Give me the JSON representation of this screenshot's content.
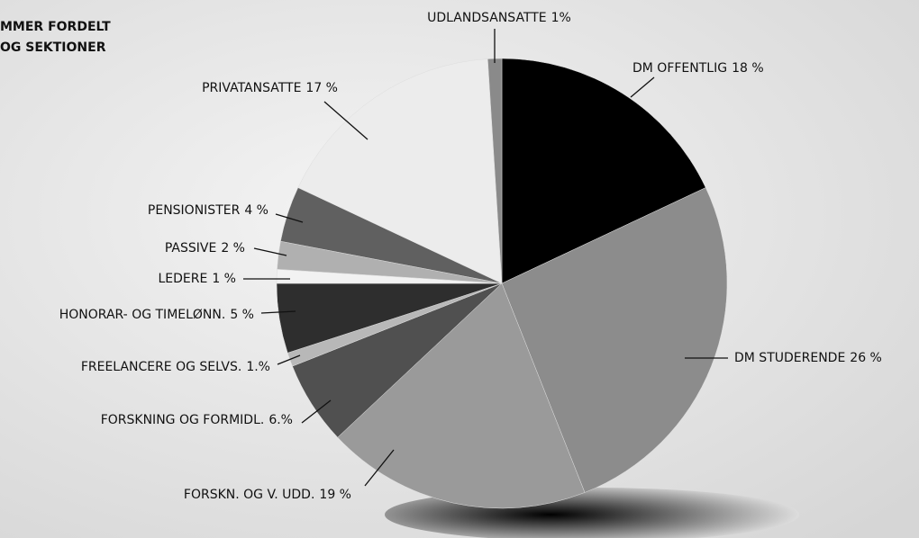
{
  "chart_data": {
    "type": "pie",
    "title": [
      "MMER FORDELT",
      "OG SEKTIONER"
    ],
    "categories": [
      "DM OFFENTLIG",
      "DM STUDERENDE",
      "FORSKN. OG V. UDD.",
      "FORSKNING OG FORMIDL.",
      "FREELANCERE OG SELVS.",
      "HONORAR- OG TIMELØNN.",
      "LEDERE",
      "PASSIVE",
      "PENSIONISTER",
      "PRIVATANSATTE",
      "UDLANDSANSATTE"
    ],
    "values": [
      18,
      26,
      19,
      6,
      1,
      5,
      1,
      2,
      4,
      17,
      1
    ],
    "value_labels": [
      "18 %",
      "26 %",
      "19 %",
      "6.%",
      "1.%",
      "5 %",
      "1 %",
      "2 %",
      "4 %",
      "17 %",
      "1%"
    ],
    "colors": [
      "#000000",
      "#8c8c8c",
      "#9a9a9a",
      "#505050",
      "#b8b8b8",
      "#2e2e2e",
      "#f2f2f2",
      "#b0b0b0",
      "#606060",
      "#ececec",
      "#8a8a8a"
    ]
  }
}
